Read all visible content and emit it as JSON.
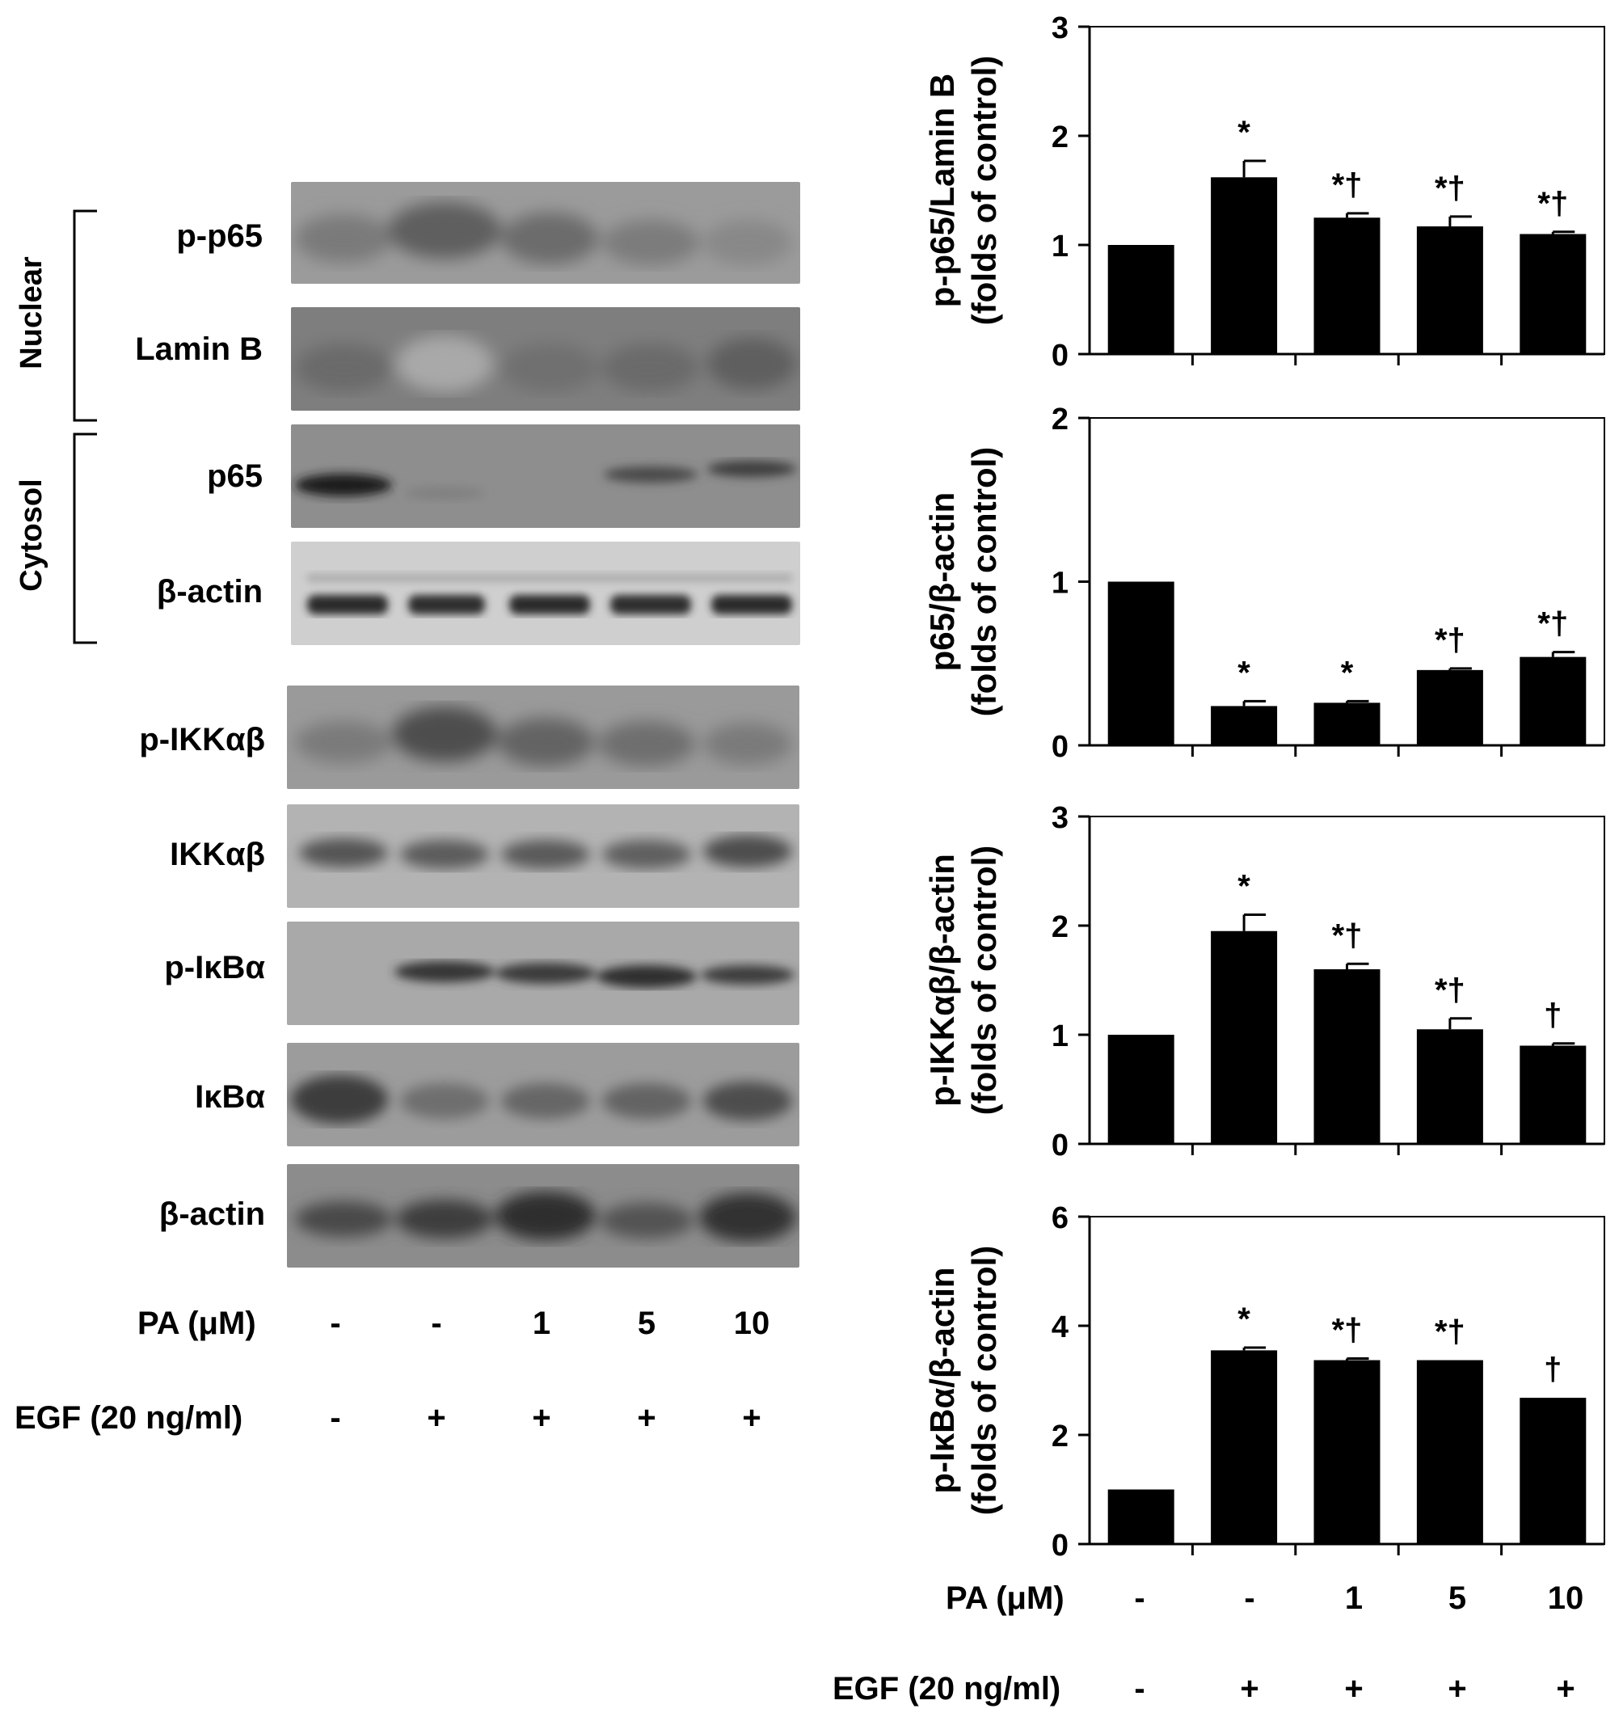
{
  "blot": {
    "groups": {
      "nuclear": "Nuclear",
      "cytosol": "Cytosol"
    },
    "bands": [
      {
        "label": "p-p65"
      },
      {
        "label": "Lamin B"
      },
      {
        "label": "p65"
      },
      {
        "label": "β-actin"
      },
      {
        "label": "p-IKKαβ"
      },
      {
        "label": "IKKαβ"
      },
      {
        "label": "p-IκBα"
      },
      {
        "label": "IκBα"
      },
      {
        "label": "β-actin"
      }
    ],
    "pa_label": "PA (μM)",
    "egf_label": "EGF (20 ng/ml)",
    "pa_values": [
      "-",
      "-",
      "1",
      "5",
      "10"
    ],
    "egf_values": [
      "-",
      "+",
      "+",
      "+",
      "+"
    ]
  },
  "charts_footer": {
    "pa_label": "PA (μM)",
    "egf_label": "EGF (20 ng/ml)",
    "pa_values": [
      "-",
      "-",
      "1",
      "5",
      "10"
    ],
    "egf_values": [
      "-",
      "+",
      "+",
      "+",
      "+"
    ]
  },
  "chart_data": [
    {
      "type": "bar",
      "ylabel_line1": "p-p65/Lamin B",
      "ylabel_line2": "(folds of control)",
      "ylim": [
        0,
        3
      ],
      "yticks": [
        0,
        1,
        2,
        3
      ],
      "values": [
        1.0,
        1.62,
        1.25,
        1.17,
        1.1
      ],
      "errors": [
        0,
        0.15,
        0.04,
        0.09,
        0.02
      ],
      "annotations": [
        "",
        "*",
        "*†",
        "*†",
        "*†"
      ]
    },
    {
      "type": "bar",
      "ylabel_line1": "p65/β-actin",
      "ylabel_line2": "(folds of control)",
      "ylim": [
        0,
        2
      ],
      "yticks": [
        0,
        1,
        2
      ],
      "values": [
        1.0,
        0.24,
        0.26,
        0.46,
        0.54
      ],
      "errors": [
        0,
        0.03,
        0.01,
        0.01,
        0.03
      ],
      "annotations": [
        "",
        "*",
        "*",
        "*†",
        "*†"
      ]
    },
    {
      "type": "bar",
      "ylabel_line1": "p-IKKαβ/β-actin",
      "ylabel_line2": "(folds of control)",
      "ylim": [
        0,
        3
      ],
      "yticks": [
        0,
        1,
        2,
        3
      ],
      "values": [
        1.0,
        1.95,
        1.6,
        1.05,
        0.9
      ],
      "errors": [
        0,
        0.15,
        0.05,
        0.1,
        0.02
      ],
      "annotations": [
        "",
        "*",
        "*†",
        "*†",
        "†"
      ]
    },
    {
      "type": "bar",
      "ylabel_line1": "p-IκBα/β-actin",
      "ylabel_line2": "(folds of control)",
      "ylim": [
        0,
        6
      ],
      "yticks": [
        0,
        2,
        4,
        6
      ],
      "values": [
        1.0,
        3.55,
        3.37,
        3.37,
        2.68
      ],
      "errors": [
        0,
        0.05,
        0.03,
        0,
        0
      ],
      "annotations": [
        "",
        "*",
        "*†",
        "*†",
        "†"
      ]
    }
  ]
}
